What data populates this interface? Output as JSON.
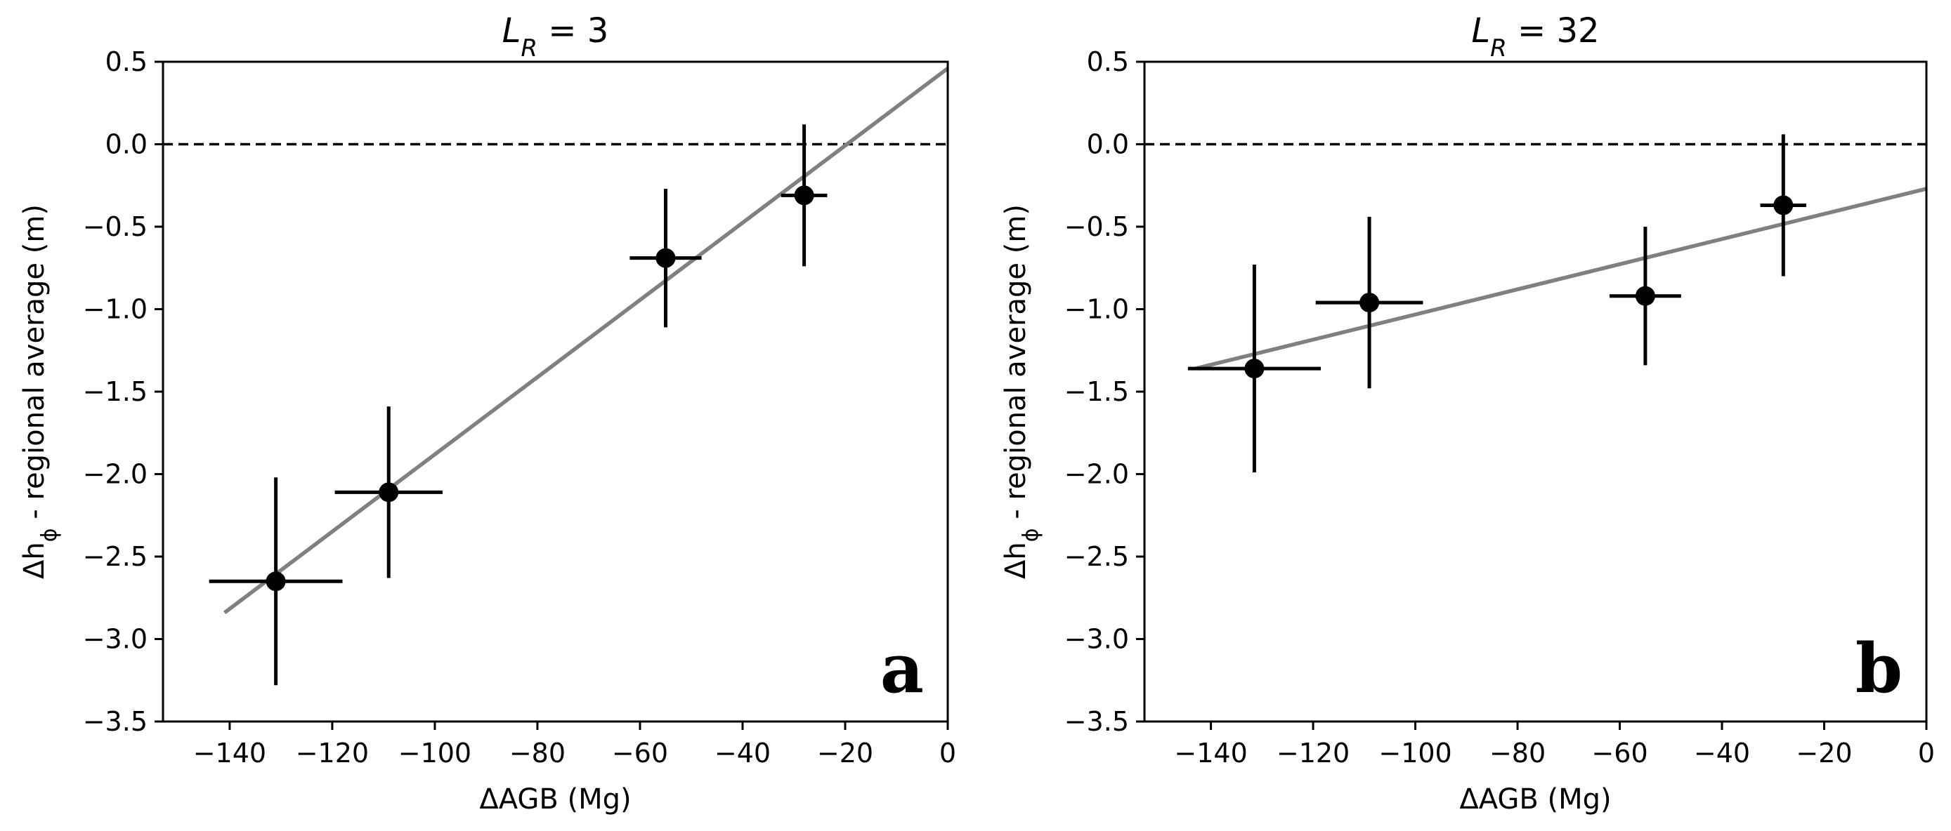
{
  "chart_data": [
    {
      "type": "scatter",
      "panel_letter": "a",
      "title": {
        "main": "L",
        "sub": "R",
        "rest": " = 3"
      },
      "xlabel": "ΔAGB (Mg)",
      "ylabel": {
        "main": "Δh",
        "sub": "ϕ",
        "rest": " - regional average (m)"
      },
      "xlim": [
        -153,
        0
      ],
      "ylim": [
        -3.5,
        0.5
      ],
      "xticks": [
        -140,
        -120,
        -100,
        -80,
        -60,
        -40,
        -20,
        0
      ],
      "xtick_labels": [
        "−140",
        "−120",
        "−100",
        "−80",
        "−60",
        "−40",
        "−20",
        "0"
      ],
      "yticks": [
        0.5,
        0.0,
        -0.5,
        -1.0,
        -1.5,
        -2.0,
        -2.5,
        -3.0,
        -3.5
      ],
      "ytick_labels": [
        "0.5",
        "0.0",
        "−0.5",
        "−1.0",
        "−1.5",
        "−2.0",
        "−2.5",
        "−3.0",
        "−3.5"
      ],
      "reference_line_y": 0.0,
      "points": [
        {
          "x": -131,
          "y": -2.65,
          "x_err": 13,
          "y_err_low": 0.63,
          "y_err_high": 0.63
        },
        {
          "x": -109,
          "y": -2.11,
          "x_err": 10.5,
          "y_err_low": 0.52,
          "y_err_high": 0.52
        },
        {
          "x": -55,
          "y": -0.69,
          "x_err": 7,
          "y_err_low": 0.42,
          "y_err_high": 0.42
        },
        {
          "x": -28,
          "y": -0.31,
          "x_err": 4.5,
          "y_err_low": 0.43,
          "y_err_high": 0.43
        }
      ],
      "fit_line": {
        "x": [
          -141,
          0
        ],
        "y": [
          -2.84,
          0.46
        ]
      },
      "colors": {
        "points": "#000000",
        "fit": "#808080",
        "reference": "#000000"
      }
    },
    {
      "type": "scatter",
      "panel_letter": "b",
      "title": {
        "main": "L",
        "sub": "R",
        "rest": " = 32"
      },
      "xlabel": "ΔAGB (Mg)",
      "ylabel": {
        "main": "Δh",
        "sub": "ϕ",
        "rest": " - regional average (m)"
      },
      "xlim": [
        -153,
        0
      ],
      "ylim": [
        -3.5,
        0.5
      ],
      "xticks": [
        -140,
        -120,
        -100,
        -80,
        -60,
        -40,
        -20,
        0
      ],
      "xtick_labels": [
        "−140",
        "−120",
        "−100",
        "−80",
        "−60",
        "−40",
        "−20",
        "0"
      ],
      "yticks": [
        0.5,
        0.0,
        -0.5,
        -1.0,
        -1.5,
        -2.0,
        -2.5,
        -3.0,
        -3.5
      ],
      "ytick_labels": [
        "0.5",
        "0.0",
        "−0.5",
        "−1.0",
        "−1.5",
        "−2.0",
        "−2.5",
        "−3.0",
        "−3.5"
      ],
      "reference_line_y": 0.0,
      "points": [
        {
          "x": -131.5,
          "y": -1.36,
          "x_err": 13,
          "y_err_low": 0.63,
          "y_err_high": 0.63
        },
        {
          "x": -109,
          "y": -0.96,
          "x_err": 10.5,
          "y_err_low": 0.52,
          "y_err_high": 0.52
        },
        {
          "x": -55,
          "y": -0.92,
          "x_err": 7,
          "y_err_low": 0.42,
          "y_err_high": 0.42
        },
        {
          "x": -28,
          "y": -0.37,
          "x_err": 4.5,
          "y_err_low": 0.43,
          "y_err_high": 0.43
        }
      ],
      "fit_line": {
        "x": [
          -143,
          0
        ],
        "y": [
          -1.36,
          -0.27
        ]
      },
      "colors": {
        "points": "#000000",
        "fit": "#808080",
        "reference": "#000000"
      }
    }
  ]
}
